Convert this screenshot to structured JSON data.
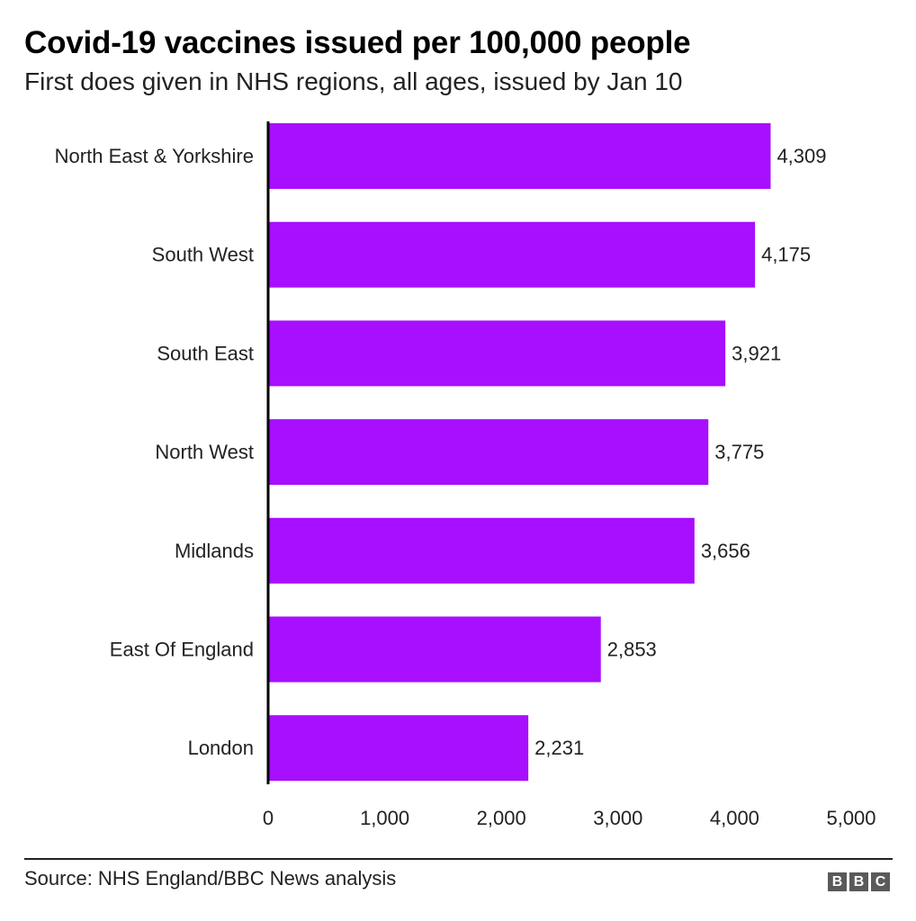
{
  "header": {
    "title": "Covid-19 vaccines issued per 100,000 people",
    "subtitle": "First does given in NHS regions, all ages, issued by Jan 10"
  },
  "chart_data": {
    "type": "bar",
    "orientation": "horizontal",
    "title": "Covid-19 vaccines issued per 100,000 people",
    "subtitle": "First does given in NHS regions, all ages, issued by Jan 10",
    "categories": [
      "North East & Yorkshire",
      "South West",
      "South East",
      "North West",
      "Midlands",
      "East Of England",
      "London"
    ],
    "values": [
      4309,
      4175,
      3921,
      3775,
      3656,
      2853,
      2231
    ],
    "value_labels": [
      "4,309",
      "4,175",
      "3,921",
      "3,775",
      "3,656",
      "2,853",
      "2,231"
    ],
    "xlim": [
      0,
      5000
    ],
    "x_ticks": [
      0,
      1000,
      2000,
      3000,
      4000,
      5000
    ],
    "x_tick_labels": [
      "0",
      "1,000",
      "2,000",
      "3,000",
      "4,000",
      "5,000"
    ],
    "xlabel": "",
    "ylabel": "",
    "grid": false,
    "bar_color": "#a80fff",
    "axis_color": "#000000"
  },
  "footer": {
    "source": "Source: NHS England/BBC News analysis",
    "logo_letters": [
      "B",
      "B",
      "C"
    ]
  }
}
